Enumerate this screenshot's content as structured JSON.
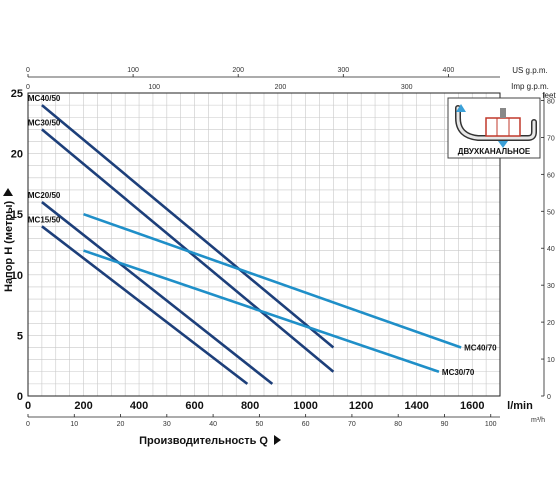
{
  "chart_data": {
    "type": "line",
    "xlabel": "Производительность Q",
    "ylabel": "Напор H (метры)",
    "xlim": [
      0,
      1700
    ],
    "ylim": [
      0,
      25
    ],
    "x_unit": "l/min",
    "x_ticks": [
      0,
      200,
      400,
      600,
      800,
      1000,
      1200,
      1400,
      1600
    ],
    "y_ticks": [
      0,
      5,
      10,
      15,
      20,
      25
    ],
    "grid": true,
    "secondary_axes": {
      "top_us": {
        "unit": "US g.p.m.",
        "ticks": [
          0,
          100,
          200,
          300,
          400
        ]
      },
      "top_imp": {
        "unit": "Imp g.p.m.",
        "ticks": [
          0,
          100,
          200,
          300
        ]
      },
      "bottom_m3h": {
        "unit": "m³/h",
        "ticks": [
          0,
          10,
          20,
          30,
          40,
          50,
          60,
          70,
          80,
          90,
          100
        ]
      },
      "right_feet": {
        "unit": "feet",
        "ticks": [
          0,
          10,
          20,
          30,
          40,
          50,
          60,
          70,
          80
        ]
      }
    },
    "series": [
      {
        "name": "MC40/50",
        "color": "#1d3f7a",
        "x": [
          50,
          1100
        ],
        "y": [
          24,
          4
        ]
      },
      {
        "name": "MC30/50",
        "color": "#1d3f7a",
        "x": [
          50,
          1100
        ],
        "y": [
          22,
          2
        ]
      },
      {
        "name": "MC20/50",
        "color": "#1d3f7a",
        "x": [
          50,
          880
        ],
        "y": [
          16,
          1
        ]
      },
      {
        "name": "MC15/50",
        "color": "#1d3f7a",
        "x": [
          50,
          790
        ],
        "y": [
          14,
          1
        ]
      },
      {
        "name": "MC40/70",
        "color": "#1f8fc8",
        "x": [
          200,
          1560
        ],
        "y": [
          15,
          4
        ]
      },
      {
        "name": "MC30/70",
        "color": "#1f8fc8",
        "x": [
          200,
          1480
        ],
        "y": [
          12,
          2
        ]
      }
    ]
  },
  "inset": {
    "label": "ДВУХКАНАЛЬНОЕ",
    "icon": "dual-channel-impeller-icon"
  },
  "colors": {
    "dark_series": "#1d3f7a",
    "light_series": "#1f8fc8",
    "grid": "#c9c9c9",
    "axis": "#222222"
  }
}
